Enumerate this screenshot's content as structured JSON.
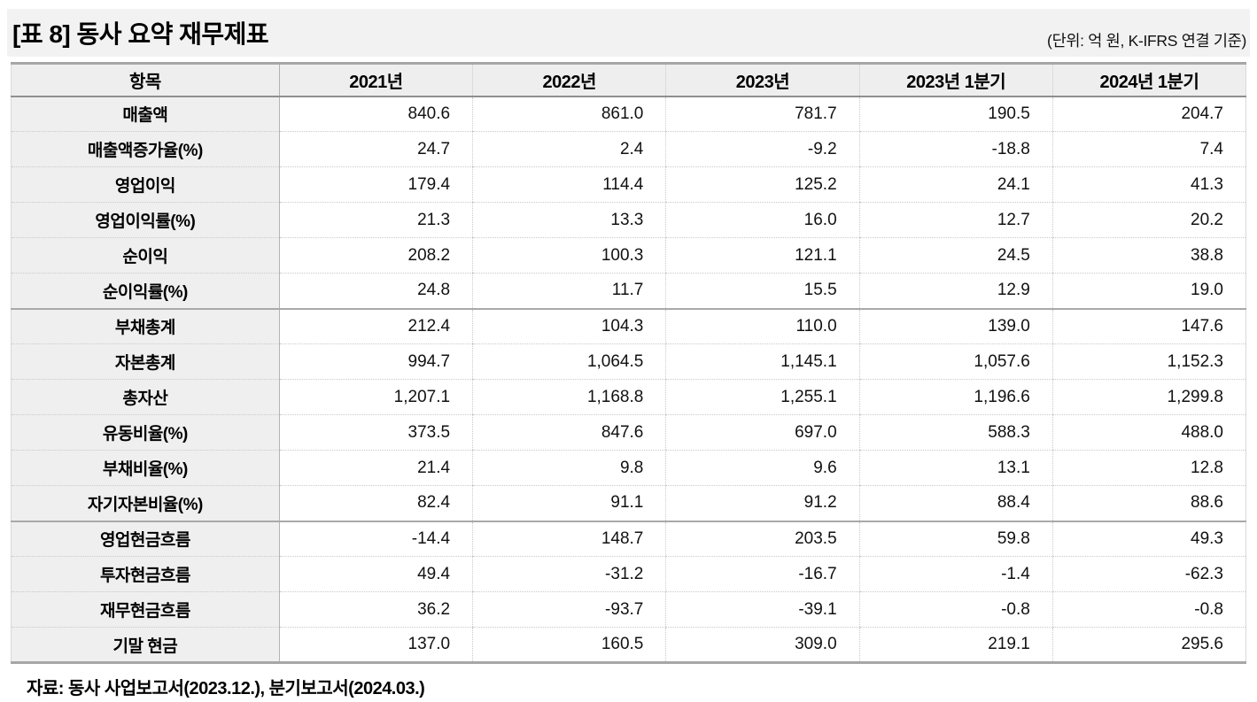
{
  "header": {
    "title": "[표 8] 동사 요약 재무제표",
    "unit_note": "(단위: 억 원, K-IFRS 연결 기준)"
  },
  "table": {
    "columns": [
      "항목",
      "2021년",
      "2022년",
      "2023년",
      "2023년 1분기",
      "2024년 1분기"
    ],
    "rows": [
      {
        "label": "매출액",
        "values": [
          "840.6",
          "861.0",
          "781.7",
          "190.5",
          "204.7"
        ],
        "group_end": false
      },
      {
        "label": "매출액증가율(%)",
        "values": [
          "24.7",
          "2.4",
          "-9.2",
          "-18.8",
          "7.4"
        ],
        "group_end": false
      },
      {
        "label": "영업이익",
        "values": [
          "179.4",
          "114.4",
          "125.2",
          "24.1",
          "41.3"
        ],
        "group_end": false
      },
      {
        "label": "영업이익률(%)",
        "values": [
          "21.3",
          "13.3",
          "16.0",
          "12.7",
          "20.2"
        ],
        "group_end": false
      },
      {
        "label": "순이익",
        "values": [
          "208.2",
          "100.3",
          "121.1",
          "24.5",
          "38.8"
        ],
        "group_end": false
      },
      {
        "label": "순이익률(%)",
        "values": [
          "24.8",
          "11.7",
          "15.5",
          "12.9",
          "19.0"
        ],
        "group_end": true
      },
      {
        "label": "부채총계",
        "values": [
          "212.4",
          "104.3",
          "110.0",
          "139.0",
          "147.6"
        ],
        "group_end": false
      },
      {
        "label": "자본총계",
        "values": [
          "994.7",
          "1,064.5",
          "1,145.1",
          "1,057.6",
          "1,152.3"
        ],
        "group_end": false
      },
      {
        "label": "총자산",
        "values": [
          "1,207.1",
          "1,168.8",
          "1,255.1",
          "1,196.6",
          "1,299.8"
        ],
        "group_end": false
      },
      {
        "label": "유동비율(%)",
        "values": [
          "373.5",
          "847.6",
          "697.0",
          "588.3",
          "488.0"
        ],
        "group_end": false
      },
      {
        "label": "부채비율(%)",
        "values": [
          "21.4",
          "9.8",
          "9.6",
          "13.1",
          "12.8"
        ],
        "group_end": false
      },
      {
        "label": "자기자본비율(%)",
        "values": [
          "82.4",
          "91.1",
          "91.2",
          "88.4",
          "88.6"
        ],
        "group_end": true
      },
      {
        "label": "영업현금흐름",
        "values": [
          "-14.4",
          "148.7",
          "203.5",
          "59.8",
          "49.3"
        ],
        "group_end": false
      },
      {
        "label": "투자현금흐름",
        "values": [
          "49.4",
          "-31.2",
          "-16.7",
          "-1.4",
          "-62.3"
        ],
        "group_end": false
      },
      {
        "label": "재무현금흐름",
        "values": [
          "36.2",
          "-93.7",
          "-39.1",
          "-0.8",
          "-0.8"
        ],
        "group_end": false
      },
      {
        "label": "기말 현금",
        "values": [
          "137.0",
          "160.5",
          "309.0",
          "219.1",
          "295.6"
        ],
        "group_end": false
      }
    ]
  },
  "footer": {
    "source": "자료: 동사 사업보고서(2023.12.), 분기보고서(2024.03.)"
  }
}
